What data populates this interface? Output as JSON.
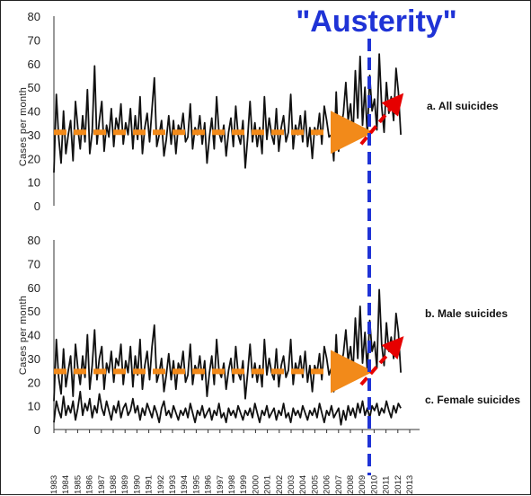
{
  "title": "\"Austerity\"",
  "colors": {
    "series": "#111111",
    "trend_before": "#f28a1a",
    "trend_after": "#e60000",
    "austerity_line": "#1f33d6"
  },
  "chart_data": [
    {
      "type": "line",
      "panel": "top",
      "ylabel": "Cases per month",
      "ylim": [
        0,
        80
      ],
      "yticks": [
        0,
        10,
        20,
        30,
        40,
        50,
        60,
        70,
        80
      ],
      "grid": false,
      "annotations": [
        "a. All suicides"
      ],
      "x_start": 1983,
      "x_end": 2012.25,
      "series": [
        {
          "name": "a. All suicides",
          "sampling": "approx. every 2 months, 1983.0–2012.0",
          "values": [
            14,
            47,
            29,
            18,
            40,
            22,
            30,
            36,
            19,
            44,
            33,
            24,
            38,
            27,
            49,
            22,
            31,
            59,
            26,
            36,
            44,
            23,
            34,
            29,
            41,
            25,
            37,
            32,
            43,
            26,
            35,
            30,
            41,
            24,
            38,
            28,
            46,
            22,
            33,
            39,
            27,
            41,
            54,
            25,
            30,
            36,
            21,
            28,
            38,
            26,
            36,
            22,
            34,
            31,
            39,
            27,
            29,
            43,
            24,
            33,
            30,
            38,
            26,
            35,
            18,
            29,
            37,
            24,
            46,
            31,
            27,
            34,
            21,
            31,
            37,
            25,
            42,
            30,
            26,
            36,
            16,
            29,
            44,
            27,
            35,
            25,
            33,
            22,
            46,
            28,
            37,
            30,
            26,
            41,
            23,
            33,
            38,
            27,
            31,
            47,
            24,
            34,
            30,
            38,
            27,
            40,
            25,
            33,
            20,
            33,
            30,
            39,
            26,
            42,
            36,
            29,
            30,
            19,
            48,
            23,
            33,
            39,
            52,
            36,
            43,
            29,
            57,
            37,
            63,
            34,
            50,
            30,
            55,
            40,
            45,
            32,
            64,
            42,
            31,
            52,
            39,
            46,
            36,
            58,
            48,
            30
          ]
        }
      ],
      "trend_before": {
        "x": [
          1983,
          2008.6
        ],
        "y": [
          31,
          31
        ]
      },
      "trend_after": {
        "x": [
          2008.9,
          2011.9
        ],
        "y": [
          26,
          44
        ]
      }
    },
    {
      "type": "line",
      "panel": "bottom",
      "ylabel": "Cases per month",
      "ylim": [
        0,
        80
      ],
      "yticks": [
        0,
        10,
        20,
        30,
        40,
        50,
        60,
        70,
        80
      ],
      "grid": false,
      "annotations": [
        "b. Male suicides",
        "c. Female suicides"
      ],
      "xticks": [
        "1983",
        "1984",
        "1985",
        "1986",
        "1987",
        "1988",
        "1989",
        "1990",
        "1991",
        "1992",
        "1993",
        "1994",
        "1995",
        "1996",
        "1997",
        "1998",
        "1999",
        "2000",
        "2001",
        "2002",
        "2003",
        "2004",
        "2005",
        "2006",
        "2007",
        "2008",
        "2009",
        "2010",
        "2011",
        "2012",
        "2013"
      ],
      "x_start": 1983,
      "x_end": 2012.25,
      "series": [
        {
          "name": "b. Male suicides",
          "sampling": "approx. every 2 months, 1983.0–2012.0",
          "values": [
            12,
            38,
            22,
            15,
            34,
            18,
            25,
            31,
            14,
            36,
            26,
            19,
            31,
            22,
            40,
            17,
            27,
            42,
            21,
            30,
            35,
            17,
            28,
            24,
            33,
            20,
            30,
            27,
            36,
            19,
            29,
            24,
            35,
            18,
            31,
            23,
            38,
            17,
            27,
            33,
            21,
            35,
            44,
            20,
            24,
            30,
            16,
            23,
            32,
            21,
            29,
            17,
            28,
            25,
            33,
            20,
            23,
            36,
            19,
            27,
            24,
            31,
            21,
            29,
            14,
            24,
            31,
            19,
            38,
            25,
            22,
            28,
            17,
            25,
            30,
            20,
            35,
            24,
            21,
            29,
            13,
            24,
            36,
            22,
            28,
            20,
            27,
            18,
            38,
            23,
            30,
            24,
            21,
            34,
            18,
            27,
            31,
            22,
            25,
            38,
            19,
            28,
            24,
            31,
            22,
            33,
            20,
            27,
            16,
            27,
            24,
            32,
            21,
            35,
            30,
            23,
            26,
            16,
            40,
            19,
            27,
            32,
            42,
            29,
            35,
            24,
            47,
            30,
            52,
            28,
            41,
            25,
            46,
            33,
            37,
            26,
            59,
            36,
            27,
            45,
            33,
            39,
            30,
            49,
            41,
            24
          ]
        },
        {
          "name": "c. Female suicides",
          "sampling": "approx. every 2 months, 1983.0–2012.0",
          "values": [
            3,
            12,
            8,
            5,
            14,
            6,
            10,
            7,
            12,
            4,
            9,
            16,
            6,
            11,
            8,
            13,
            5,
            10,
            7,
            15,
            9,
            6,
            12,
            8,
            4,
            10,
            7,
            12,
            5,
            9,
            11,
            6,
            8,
            13,
            7,
            10,
            4,
            9,
            6,
            11,
            8,
            5,
            10,
            7,
            3,
            9,
            12,
            6,
            8,
            5,
            10,
            7,
            4,
            8,
            6,
            9,
            5,
            11,
            7,
            3,
            8,
            6,
            10,
            5,
            7,
            9,
            4,
            8,
            6,
            11,
            5,
            7,
            3,
            9,
            6,
            8,
            5,
            10,
            7,
            4,
            8,
            6,
            9,
            5,
            11,
            7,
            3,
            8,
            6,
            10,
            5,
            7,
            9,
            4,
            8,
            6,
            11,
            5,
            7,
            3,
            9,
            6,
            8,
            5,
            10,
            7,
            4,
            8,
            6,
            9,
            5,
            11,
            7,
            3,
            8,
            6,
            10,
            5,
            7,
            9,
            2,
            8,
            4,
            10,
            6,
            9,
            5,
            11,
            7,
            12,
            6,
            9,
            5,
            10,
            8,
            11,
            6,
            9,
            7,
            12,
            8,
            5,
            10,
            7,
            11,
            9
          ]
        }
      ],
      "trend_before": {
        "x": [
          1983,
          2008.6
        ],
        "y": [
          24.5,
          24.5
        ]
      },
      "trend_after": {
        "x": [
          2008.9,
          2011.9
        ],
        "y": [
          19,
          36
        ]
      }
    }
  ],
  "labels": {
    "top_ylabel": "Cases per month",
    "bottom_ylabel": "Cases per month",
    "series_a": "a. All suicides",
    "series_b": "b. Male suicides",
    "series_c": "c. Female suicides"
  }
}
